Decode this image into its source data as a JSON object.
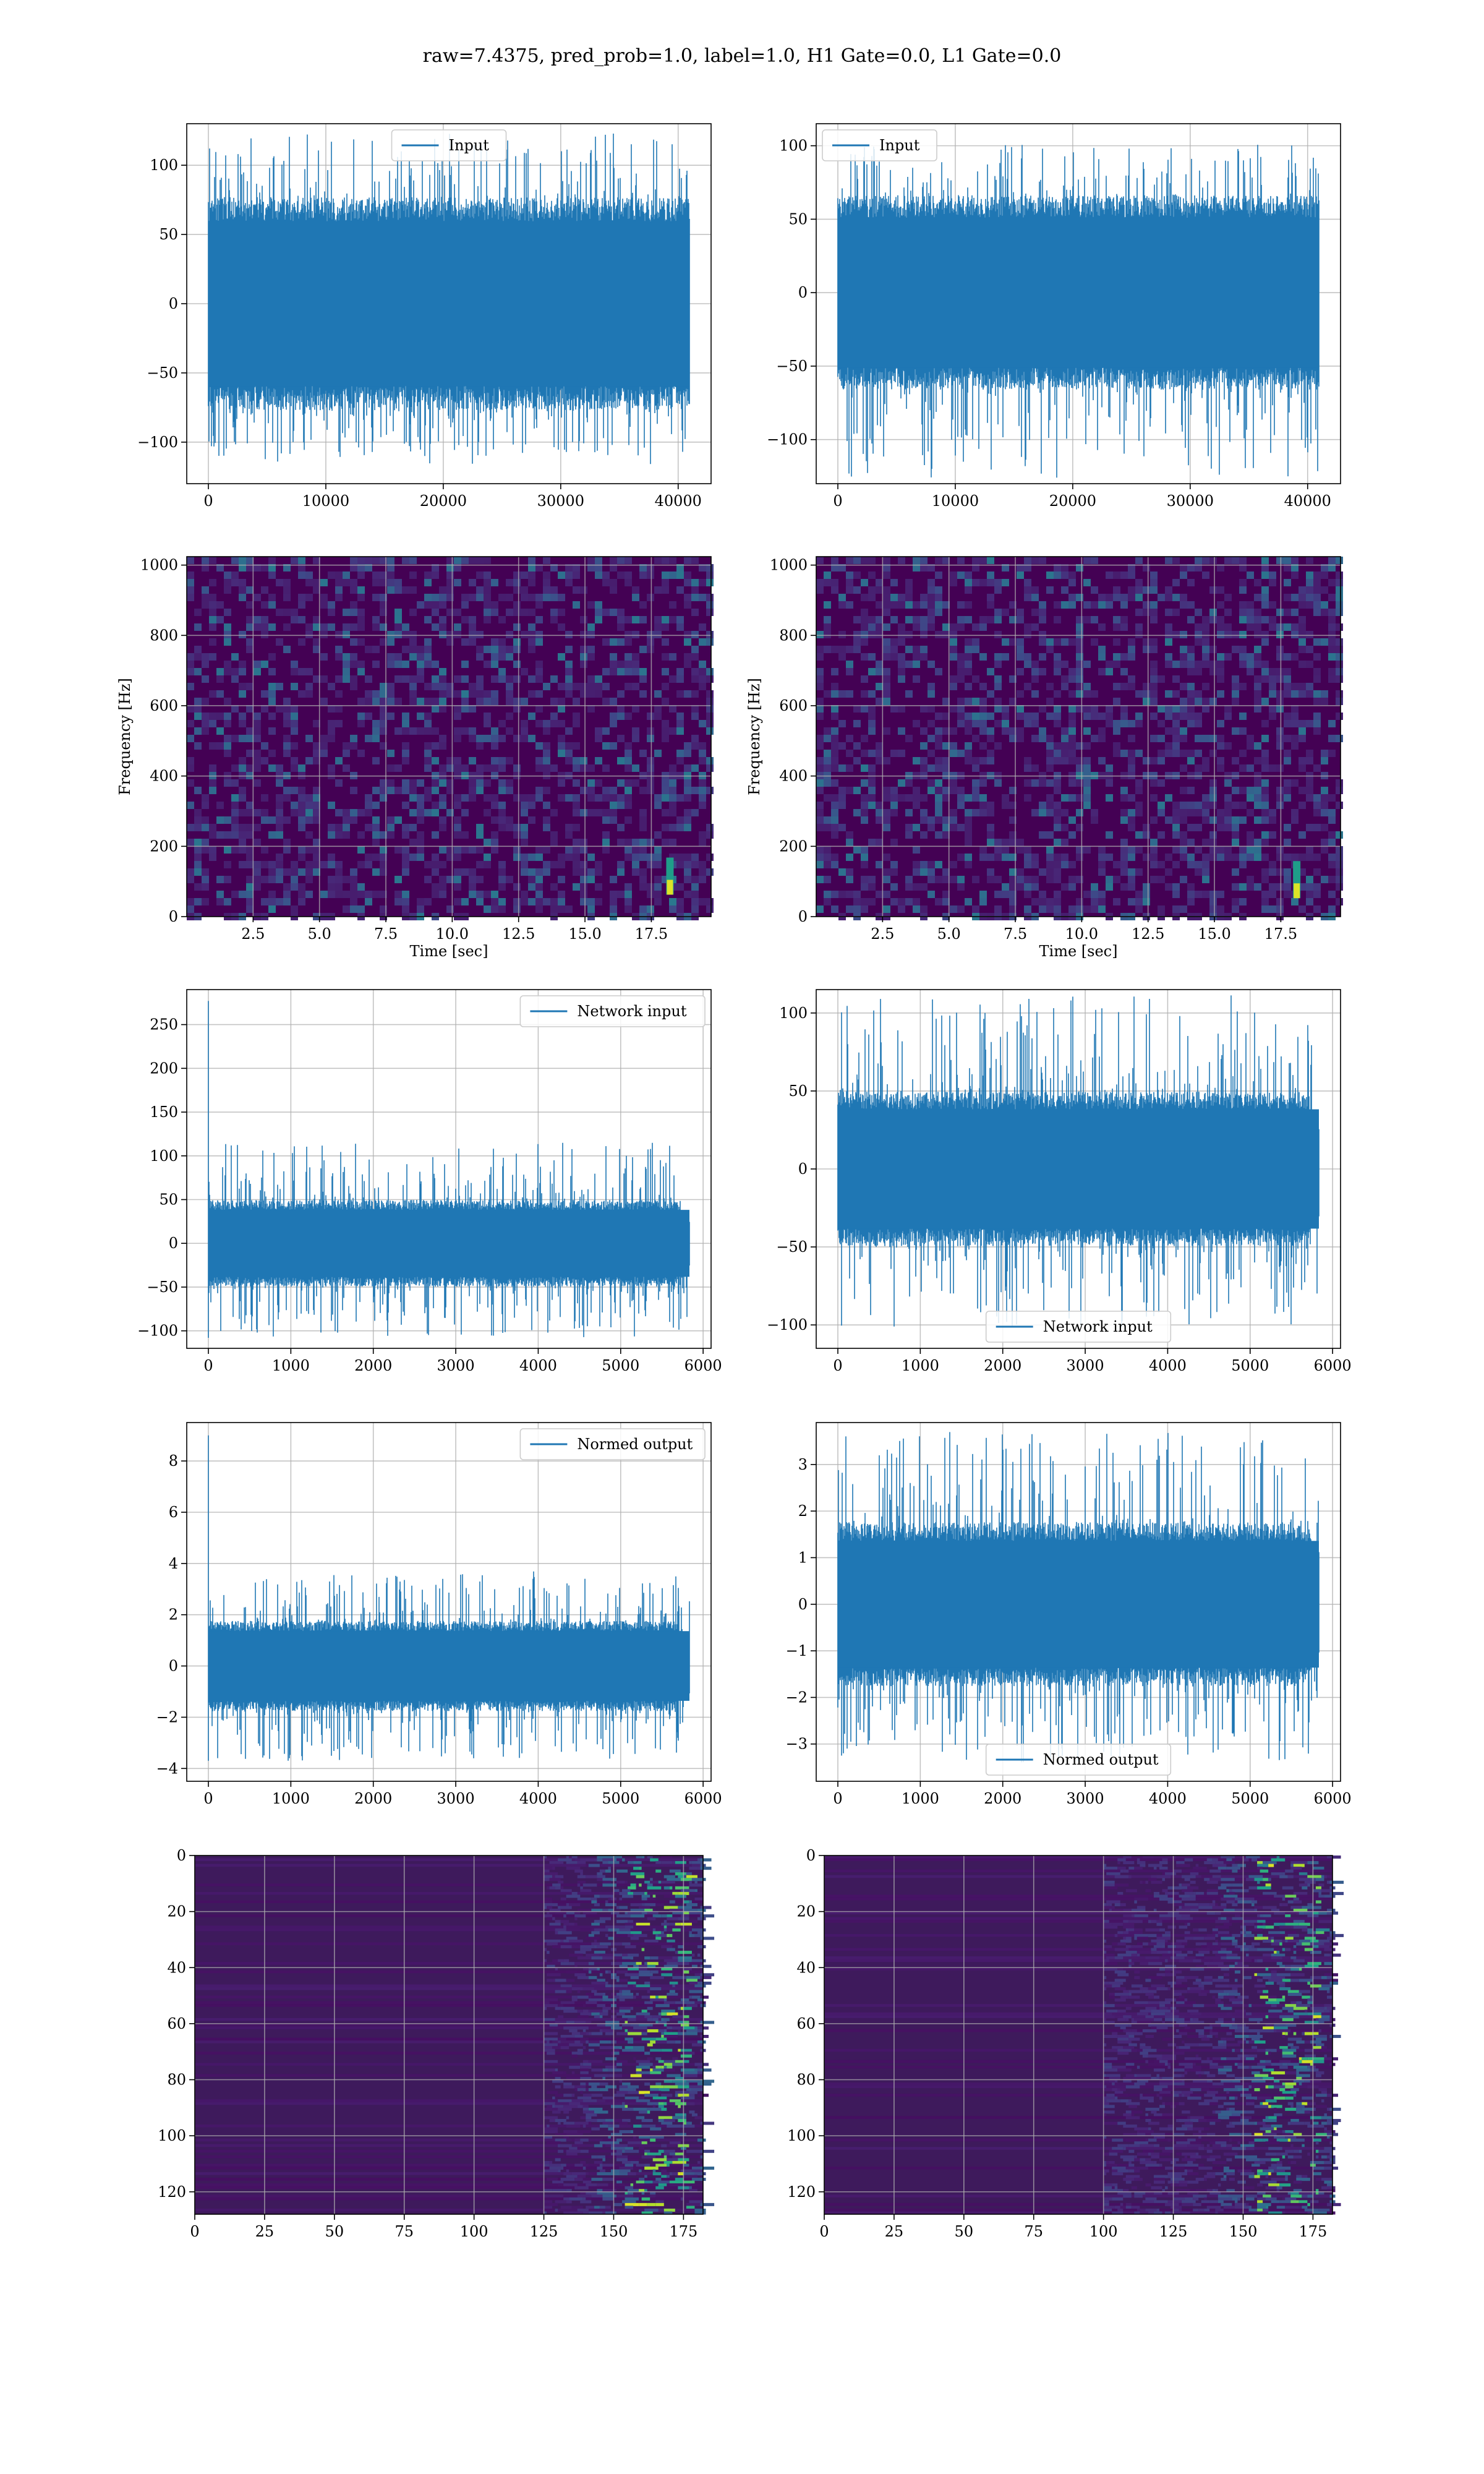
{
  "title": "raw=7.4375, pred_prob=1.0, label=1.0, H1 Gate=0.0, L1 Gate=0.0",
  "colors": {
    "series": "#1f77b4",
    "grid": "#b0b0b0",
    "spec_bg": "#440154"
  },
  "chart_data": [
    {
      "id": "input-h1",
      "type": "line",
      "xlim": [
        0,
        40960
      ],
      "ylim": [
        -130,
        130
      ],
      "xticks": [
        0,
        10000,
        20000,
        30000,
        40000
      ],
      "yticks": [
        -100,
        -50,
        0,
        50,
        100
      ],
      "xtick_labels": [
        "0",
        "10000",
        "20000",
        "30000",
        "40000"
      ],
      "ytick_labels": [
        "−100",
        "−50",
        "0",
        "50",
        "100"
      ],
      "xlabel": "",
      "ylabel": "",
      "legend": "Input",
      "legend_loc": "upper center",
      "grid": true,
      "series": [
        {
          "name": "Input",
          "n": 40960,
          "body": 70,
          "peak_max": 124,
          "peak_min": -116
        }
      ]
    },
    {
      "id": "input-l1",
      "type": "line",
      "xlim": [
        0,
        40960
      ],
      "ylim": [
        -130,
        115
      ],
      "xticks": [
        0,
        10000,
        20000,
        30000,
        40000
      ],
      "yticks": [
        -100,
        -50,
        0,
        50,
        100
      ],
      "xtick_labels": [
        "0",
        "10000",
        "20000",
        "30000",
        "40000"
      ],
      "ytick_labels": [
        "−100",
        "−50",
        "0",
        "50",
        "100"
      ],
      "xlabel": "",
      "ylabel": "",
      "legend": "Input",
      "legend_loc": "upper left",
      "grid": true,
      "series": [
        {
          "name": "Input",
          "n": 40960,
          "body": 60,
          "peak_max": 101,
          "peak_min": -126
        }
      ]
    },
    {
      "id": "spec-h1",
      "type": "heatmap",
      "xlim": [
        0,
        19.75
      ],
      "ylim": [
        0,
        1024
      ],
      "xticks": [
        2.5,
        5.0,
        7.5,
        10.0,
        12.5,
        15.0,
        17.5
      ],
      "yticks": [
        0,
        200,
        400,
        600,
        800,
        1000
      ],
      "xtick_labels": [
        "2.5",
        "5.0",
        "7.5",
        "10.0",
        "12.5",
        "15.0",
        "17.5"
      ],
      "ytick_labels": [
        "0",
        "200",
        "400",
        "600",
        "800",
        "1000"
      ],
      "xlabel": "Time [sec]",
      "ylabel": "Frequency [Hz]",
      "grid": true,
      "colormap": "viridis",
      "hotspot": {
        "t": 18.2,
        "f": 80
      }
    },
    {
      "id": "spec-l1",
      "type": "heatmap",
      "xlim": [
        0,
        19.75
      ],
      "ylim": [
        0,
        1024
      ],
      "xticks": [
        2.5,
        5.0,
        7.5,
        10.0,
        12.5,
        15.0,
        17.5
      ],
      "yticks": [
        0,
        200,
        400,
        600,
        800,
        1000
      ],
      "xtick_labels": [
        "2.5",
        "5.0",
        "7.5",
        "10.0",
        "12.5",
        "15.0",
        "17.5"
      ],
      "ytick_labels": [
        "0",
        "200",
        "400",
        "600",
        "800",
        "1000"
      ],
      "xlabel": "Time [sec]",
      "ylabel": "Frequency [Hz]",
      "grid": true,
      "colormap": "viridis",
      "hotspot": {
        "t": 18.1,
        "f": 70
      }
    },
    {
      "id": "net-h1",
      "type": "line",
      "xlim": [
        0,
        5834
      ],
      "ylim": [
        -120,
        290
      ],
      "xticks": [
        0,
        1000,
        2000,
        3000,
        4000,
        5000,
        6000
      ],
      "yticks": [
        -100,
        -50,
        0,
        50,
        100,
        150,
        200,
        250
      ],
      "xtick_labels": [
        "0",
        "1000",
        "2000",
        "3000",
        "4000",
        "5000",
        "6000"
      ],
      "ytick_labels": [
        "−100",
        "−50",
        "0",
        "50",
        "100",
        "150",
        "200",
        "250"
      ],
      "xlabel": "",
      "ylabel": "",
      "legend": "Network input",
      "legend_loc": "upper right",
      "grid": true,
      "series": [
        {
          "name": "Network input",
          "n": 5834,
          "body": 45,
          "peak_max": 115,
          "peak_min": -108,
          "spike": 277
        }
      ]
    },
    {
      "id": "net-l1",
      "type": "line",
      "xlim": [
        0,
        5834
      ],
      "ylim": [
        -115,
        115
      ],
      "xticks": [
        0,
        1000,
        2000,
        3000,
        4000,
        5000,
        6000
      ],
      "yticks": [
        -100,
        -50,
        0,
        50,
        100
      ],
      "xtick_labels": [
        "0",
        "1000",
        "2000",
        "3000",
        "4000",
        "5000",
        "6000"
      ],
      "ytick_labels": [
        "−100",
        "−50",
        "0",
        "50",
        "100"
      ],
      "xlabel": "",
      "ylabel": "",
      "legend": "Network input",
      "legend_loc": "lower center",
      "grid": true,
      "series": [
        {
          "name": "Network input",
          "n": 5834,
          "body": 45,
          "peak_max": 112,
          "peak_min": -102
        }
      ]
    },
    {
      "id": "norm-h1",
      "type": "line",
      "xlim": [
        0,
        5834
      ],
      "ylim": [
        -4.5,
        9.5
      ],
      "xticks": [
        0,
        1000,
        2000,
        3000,
        4000,
        5000,
        6000
      ],
      "yticks": [
        -4,
        -2,
        0,
        2,
        4,
        6,
        8
      ],
      "xtick_labels": [
        "0",
        "1000",
        "2000",
        "3000",
        "4000",
        "5000",
        "6000"
      ],
      "ytick_labels": [
        "−4",
        "−2",
        "0",
        "2",
        "4",
        "6",
        "8"
      ],
      "xlabel": "",
      "ylabel": "",
      "legend": "Normed output",
      "legend_loc": "upper right",
      "grid": true,
      "series": [
        {
          "name": "Normed output",
          "n": 5834,
          "body": 1.6,
          "peak_max": 3.7,
          "peak_min": -3.7,
          "spike": 9.0
        }
      ]
    },
    {
      "id": "norm-l1",
      "type": "line",
      "xlim": [
        0,
        5834
      ],
      "ylim": [
        -3.8,
        3.9
      ],
      "xticks": [
        0,
        1000,
        2000,
        3000,
        4000,
        5000,
        6000
      ],
      "yticks": [
        -3,
        -2,
        -1,
        0,
        1,
        2,
        3
      ],
      "xtick_labels": [
        "0",
        "1000",
        "2000",
        "3000",
        "4000",
        "5000",
        "6000"
      ],
      "ytick_labels": [
        "−3",
        "−2",
        "−1",
        "0",
        "1",
        "2",
        "3"
      ],
      "xlabel": "",
      "ylabel": "",
      "legend": "Normed output",
      "legend_loc": "lower center",
      "grid": true,
      "series": [
        {
          "name": "Normed output",
          "n": 5834,
          "body": 1.6,
          "peak_max": 3.7,
          "peak_min": -3.4
        }
      ]
    },
    {
      "id": "feat-h1",
      "type": "heatmap",
      "xlim": [
        0,
        182
      ],
      "ylim": [
        128,
        0
      ],
      "xticks": [
        0,
        25,
        50,
        75,
        100,
        125,
        150,
        175
      ],
      "yticks": [
        0,
        20,
        40,
        60,
        80,
        100,
        120
      ],
      "xtick_labels": [
        "0",
        "25",
        "50",
        "75",
        "100",
        "125",
        "150",
        "175"
      ],
      "ytick_labels": [
        "0",
        "20",
        "40",
        "60",
        "80",
        "100",
        "120"
      ],
      "xlabel": "",
      "ylabel": "",
      "grid": true,
      "colormap": "viridis",
      "active_from": 125,
      "peak_col": 165
    },
    {
      "id": "feat-l1",
      "type": "heatmap",
      "xlim": [
        0,
        182
      ],
      "ylim": [
        128,
        0
      ],
      "xticks": [
        0,
        25,
        50,
        75,
        100,
        125,
        150,
        175
      ],
      "yticks": [
        0,
        20,
        40,
        60,
        80,
        100,
        120
      ],
      "xtick_labels": [
        "0",
        "25",
        "50",
        "75",
        "100",
        "125",
        "150",
        "175"
      ],
      "ytick_labels": [
        "0",
        "20",
        "40",
        "60",
        "80",
        "100",
        "120"
      ],
      "xlabel": "",
      "ylabel": "",
      "grid": true,
      "colormap": "viridis",
      "active_from": 100,
      "peak_col": 165
    }
  ]
}
